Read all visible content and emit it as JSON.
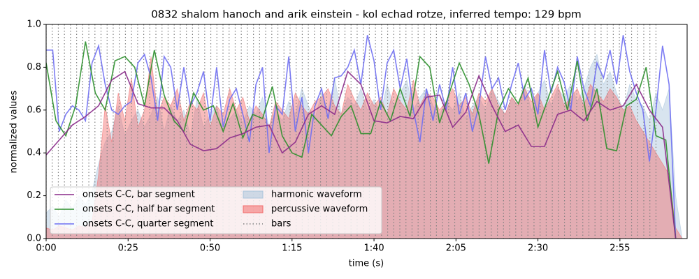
{
  "chart_data": {
    "type": "line",
    "title": "0832 shalom hanoch and arik einstein - kol echad rotze, inferred tempo: 129 bpm",
    "x_label": "time (s)",
    "y_label": "normalized values",
    "xlim": [
      0,
      195.5
    ],
    "ylim": [
      0,
      1
    ],
    "xticks": [
      {
        "value": 0,
        "label": "0:00"
      },
      {
        "value": 25,
        "label": "0:25"
      },
      {
        "value": 50,
        "label": "0:50"
      },
      {
        "value": 75,
        "label": "1:15"
      },
      {
        "value": 100,
        "label": "1:40"
      },
      {
        "value": 125,
        "label": "2:05"
      },
      {
        "value": 150,
        "label": "2:30"
      },
      {
        "value": 175,
        "label": "2:55"
      }
    ],
    "yticks": [
      {
        "value": 0,
        "label": "0.0"
      },
      0.2,
      0.4,
      0.6,
      0.8,
      {
        "value": 1,
        "label": "1.0"
      }
    ],
    "legend": "lower left",
    "series": [
      {
        "name": "harmonic waveform",
        "style": "area",
        "color": "#a9c4dc",
        "x": [
          0,
          2,
          4,
          6,
          8,
          10,
          12,
          14,
          16,
          18,
          20,
          22,
          24,
          26,
          28,
          30,
          32,
          34,
          36,
          38,
          40,
          42,
          44,
          46,
          48,
          50,
          52,
          54,
          56,
          58,
          60,
          62,
          64,
          66,
          68,
          70,
          72,
          74,
          76,
          78,
          80,
          82,
          84,
          86,
          88,
          90,
          92,
          94,
          96,
          98,
          100,
          102,
          104,
          106,
          108,
          110,
          112,
          114,
          116,
          118,
          120,
          122,
          124,
          126,
          128,
          130,
          132,
          134,
          136,
          138,
          140,
          142,
          144,
          146,
          148,
          150,
          152,
          154,
          156,
          158,
          160,
          162,
          164,
          166,
          168,
          170,
          172,
          174,
          176,
          178,
          180,
          182,
          184,
          186,
          188,
          190,
          192,
          194
        ],
        "values": [
          0.12,
          0.15,
          0.1,
          0.18,
          0.14,
          0.2,
          0.16,
          0.22,
          0.35,
          0.45,
          0.5,
          0.62,
          0.48,
          0.55,
          0.6,
          0.52,
          0.58,
          0.66,
          0.5,
          0.62,
          0.55,
          0.6,
          0.48,
          0.65,
          0.52,
          0.58,
          0.62,
          0.5,
          0.56,
          0.6,
          0.54,
          0.62,
          0.58,
          0.66,
          0.52,
          0.6,
          0.55,
          0.64,
          0.58,
          0.7,
          0.62,
          0.56,
          0.68,
          0.6,
          0.75,
          0.58,
          0.66,
          0.62,
          0.7,
          0.6,
          0.65,
          0.58,
          0.72,
          0.62,
          0.68,
          0.74,
          0.6,
          0.66,
          0.7,
          0.62,
          0.58,
          0.64,
          0.6,
          0.68,
          0.56,
          0.62,
          0.66,
          0.6,
          0.7,
          0.64,
          0.58,
          0.66,
          0.62,
          0.72,
          0.6,
          0.68,
          0.74,
          0.62,
          0.7,
          0.66,
          0.72,
          0.64,
          0.7,
          0.8,
          0.86,
          0.72,
          0.78,
          0.68,
          0.6,
          0.72,
          0.65,
          0.62,
          0.55,
          0.68,
          0.6,
          0.7,
          0.2,
          0.0
        ]
      },
      {
        "name": "percussive waveform",
        "style": "area",
        "color": "#f26b6b",
        "x": [
          0,
          2,
          4,
          6,
          8,
          10,
          12,
          14,
          16,
          18,
          20,
          22,
          24,
          26,
          28,
          30,
          32,
          34,
          36,
          38,
          40,
          42,
          44,
          46,
          48,
          50,
          52,
          54,
          56,
          58,
          60,
          62,
          64,
          66,
          68,
          70,
          72,
          74,
          76,
          78,
          80,
          82,
          84,
          86,
          88,
          90,
          92,
          94,
          96,
          98,
          100,
          102,
          104,
          106,
          108,
          110,
          112,
          114,
          116,
          118,
          120,
          122,
          124,
          126,
          128,
          130,
          132,
          134,
          136,
          138,
          140,
          142,
          144,
          146,
          148,
          150,
          152,
          154,
          156,
          158,
          160,
          162,
          164,
          166,
          168,
          170,
          172,
          174,
          176,
          178,
          180,
          182,
          184,
          186,
          188,
          190,
          192,
          194
        ],
        "values": [
          0.05,
          0.04,
          0.06,
          0.05,
          0.04,
          0.06,
          0.05,
          0.08,
          0.3,
          0.62,
          0.45,
          0.68,
          0.55,
          0.75,
          0.52,
          0.6,
          0.85,
          0.58,
          0.66,
          0.62,
          0.7,
          0.55,
          0.64,
          0.6,
          0.68,
          0.52,
          0.62,
          0.58,
          0.7,
          0.6,
          0.66,
          0.55,
          0.62,
          0.58,
          0.52,
          0.64,
          0.6,
          0.56,
          0.68,
          0.62,
          0.58,
          0.64,
          0.66,
          0.7,
          0.62,
          0.58,
          0.72,
          0.65,
          0.6,
          0.68,
          0.62,
          0.66,
          0.58,
          0.7,
          0.64,
          0.6,
          0.74,
          0.62,
          0.68,
          0.66,
          0.6,
          0.64,
          0.7,
          0.62,
          0.66,
          0.58,
          0.68,
          0.64,
          0.7,
          0.62,
          0.58,
          0.66,
          0.62,
          0.7,
          0.64,
          0.68,
          0.6,
          0.66,
          0.72,
          0.62,
          0.66,
          0.7,
          0.62,
          0.72,
          0.68,
          0.64,
          0.7,
          0.66,
          0.6,
          0.62,
          0.55,
          0.5,
          0.45,
          0.4,
          0.35,
          0.3,
          0.05,
          0.0
        ]
      },
      {
        "name": "bars",
        "style": "vlines",
        "color": "#808080",
        "x": [
          0,
          1.86,
          3.72,
          5.58,
          7.44,
          9.3,
          11.16,
          13.02,
          14.88,
          16.74,
          18.6,
          20.46,
          22.32,
          24.18,
          26.04,
          27.9,
          29.76,
          31.62,
          33.48,
          35.34,
          37.2,
          39.06,
          40.92,
          42.78,
          44.64,
          46.5,
          48.36,
          50.22,
          52.08,
          53.94,
          55.8,
          57.66,
          59.52,
          61.38,
          63.24,
          65.1,
          66.96,
          68.82,
          70.68,
          72.54,
          74.4,
          76.26,
          78.12,
          79.98,
          81.84,
          83.7,
          85.56,
          87.42,
          89.28,
          91.14,
          93,
          94.86,
          96.72,
          98.58,
          100.44,
          102.3,
          104.16,
          106.02,
          107.88,
          109.74,
          111.6,
          113.46,
          115.32,
          117.18,
          119.04,
          120.9,
          122.76,
          124.62,
          126.48,
          128.34,
          130.2,
          132.06,
          133.92,
          135.78,
          137.64,
          139.5,
          141.36,
          143.22,
          145.08,
          146.94,
          148.8,
          150.66,
          152.52,
          154.38,
          156.24,
          158.1,
          159.96,
          161.82,
          163.68,
          165.54,
          167.4,
          169.26,
          171.12,
          172.98,
          174.84,
          176.7,
          178.56,
          180.42,
          182.28,
          184.14,
          186
        ]
      },
      {
        "name": "onsets C-C, quarter segment",
        "style": "line",
        "color": "#6f6ff2",
        "x": [
          0,
          2,
          4,
          6,
          8,
          10,
          12,
          14,
          16,
          18,
          20,
          22,
          24,
          26,
          28,
          30,
          32,
          34,
          36,
          38,
          40,
          42,
          44,
          46,
          48,
          50,
          52,
          54,
          56,
          58,
          60,
          62,
          64,
          66,
          68,
          70,
          72,
          74,
          76,
          78,
          80,
          82,
          84,
          86,
          88,
          90,
          92,
          94,
          96,
          98,
          100,
          102,
          104,
          106,
          108,
          110,
          112,
          114,
          116,
          118,
          120,
          122,
          124,
          126,
          128,
          130,
          132,
          134,
          136,
          138,
          140,
          142,
          144,
          146,
          148,
          150,
          152,
          154,
          156,
          158,
          160,
          162,
          164,
          166,
          168,
          170,
          172,
          174,
          176,
          178,
          180,
          182,
          184,
          186,
          188,
          190,
          192
        ],
        "values": [
          0.88,
          0.88,
          0.5,
          0.58,
          0.62,
          0.6,
          0.55,
          0.82,
          0.9,
          0.72,
          0.6,
          0.58,
          0.62,
          0.64,
          0.82,
          0.86,
          0.75,
          0.55,
          0.85,
          0.8,
          0.6,
          0.8,
          0.62,
          0.68,
          0.78,
          0.55,
          0.8,
          0.52,
          0.65,
          0.7,
          0.58,
          0.45,
          0.72,
          0.8,
          0.4,
          0.62,
          0.58,
          0.85,
          0.5,
          0.66,
          0.4,
          0.62,
          0.7,
          0.56,
          0.75,
          0.76,
          0.8,
          0.88,
          0.72,
          0.95,
          0.83,
          0.6,
          0.82,
          0.88,
          0.7,
          0.84,
          0.6,
          0.45,
          0.7,
          0.55,
          0.72,
          0.6,
          0.8,
          0.58,
          0.68,
          0.5,
          0.62,
          0.85,
          0.7,
          0.75,
          0.6,
          0.72,
          0.82,
          0.65,
          0.7,
          0.58,
          0.88,
          0.68,
          0.8,
          0.73,
          0.6,
          0.85,
          0.7,
          0.62,
          0.82,
          0.75,
          0.88,
          0.72,
          0.95,
          0.78,
          0.68,
          0.6,
          0.36,
          0.6,
          0.9,
          0.72,
          0.0
        ]
      },
      {
        "name": "onsets C-C, half bar segment",
        "style": "line",
        "color": "#2b8f2b",
        "x": [
          0,
          3,
          6,
          9,
          12,
          15,
          18,
          21,
          24,
          27,
          30,
          33,
          36,
          39,
          42,
          45,
          48,
          51,
          54,
          57,
          60,
          63,
          66,
          69,
          72,
          75,
          78,
          81,
          84,
          87,
          90,
          93,
          96,
          99,
          102,
          105,
          108,
          111,
          114,
          117,
          120,
          123,
          126,
          129,
          132,
          135,
          138,
          141,
          144,
          147,
          150,
          153,
          156,
          159,
          162,
          165,
          168,
          171,
          174,
          177,
          180,
          183,
          186,
          189,
          192
        ],
        "values": [
          0.82,
          0.55,
          0.48,
          0.62,
          0.92,
          0.68,
          0.6,
          0.83,
          0.85,
          0.8,
          0.62,
          0.88,
          0.67,
          0.55,
          0.5,
          0.68,
          0.6,
          0.62,
          0.5,
          0.63,
          0.47,
          0.58,
          0.56,
          0.71,
          0.48,
          0.4,
          0.38,
          0.58,
          0.53,
          0.48,
          0.57,
          0.62,
          0.49,
          0.49,
          0.64,
          0.55,
          0.7,
          0.57,
          0.85,
          0.8,
          0.54,
          0.68,
          0.82,
          0.72,
          0.58,
          0.35,
          0.6,
          0.7,
          0.63,
          0.75,
          0.52,
          0.65,
          0.78,
          0.6,
          0.83,
          0.55,
          0.7,
          0.42,
          0.41,
          0.62,
          0.65,
          0.8,
          0.48,
          0.46,
          0.0
        ]
      },
      {
        "name": "onsets C-C, bar segment",
        "style": "line",
        "color": "#8a2a8a",
        "x": [
          0,
          4,
          8,
          12,
          16,
          20,
          24,
          28,
          32,
          36,
          40,
          44,
          48,
          52,
          56,
          60,
          64,
          68,
          72,
          76,
          80,
          84,
          88,
          92,
          96,
          100,
          104,
          108,
          112,
          116,
          120,
          124,
          128,
          132,
          136,
          140,
          144,
          148,
          152,
          156,
          160,
          164,
          168,
          172,
          176,
          180,
          184,
          188,
          192
        ],
        "values": [
          0.39,
          0.46,
          0.53,
          0.57,
          0.62,
          0.74,
          0.78,
          0.63,
          0.61,
          0.61,
          0.55,
          0.44,
          0.41,
          0.42,
          0.47,
          0.49,
          0.52,
          0.53,
          0.4,
          0.45,
          0.58,
          0.62,
          0.58,
          0.78,
          0.72,
          0.55,
          0.54,
          0.57,
          0.56,
          0.66,
          0.67,
          0.52,
          0.59,
          0.76,
          0.62,
          0.5,
          0.53,
          0.43,
          0.43,
          0.58,
          0.6,
          0.55,
          0.64,
          0.6,
          0.62,
          0.72,
          0.6,
          0.52,
          0.0
        ]
      }
    ],
    "legend_order": [
      5,
      4,
      3,
      0,
      1,
      2
    ]
  }
}
